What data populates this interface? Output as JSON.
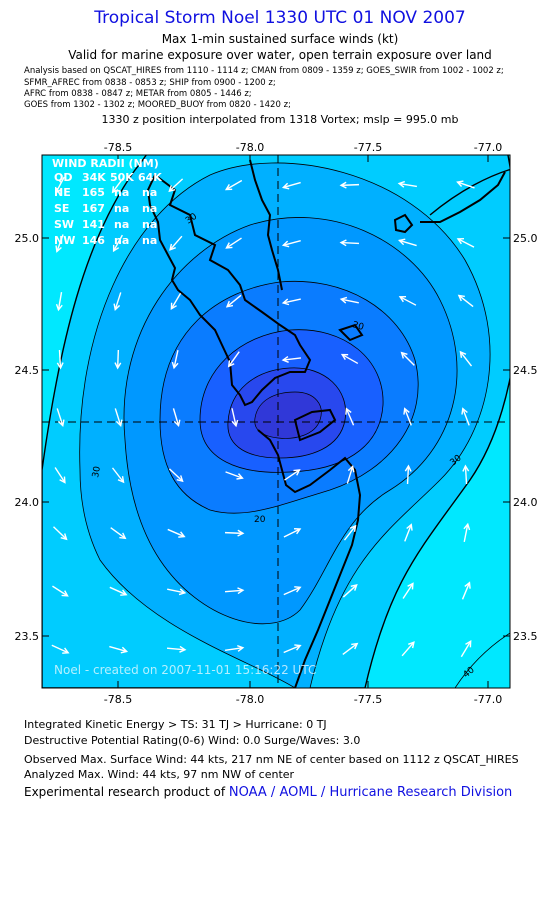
{
  "header": {
    "title": "Tropical Storm Noel 1330 UTC 01 NOV 2007",
    "subtitle1": "Max 1-min sustained surface winds (kt)",
    "subtitle2": "Valid for marine exposure over water, open terrain exposure over land",
    "analysis_lines": [
      "Analysis based on  QSCAT_HIRES from 1110 - 1114 z;  CMAN from 0809 - 1359 z;  GOES_SWIR from 1002 - 1002 z;",
      "SFMR_AFREC from 0838 - 0853 z;  SHIP from 0900 - 1200 z;",
      "AFRC from 0838 - 0847 z;  METAR from 0805 - 1446 z;",
      "GOES from 1302 - 1302 z;  MOORED_BUOY from 0820 - 1420 z;"
    ],
    "position_line": "1330 z position interpolated from 1318 Vortex; mslp = 995.0 mb"
  },
  "map": {
    "x_ticks": [
      "-78.5",
      "-78.0",
      "-77.5",
      "-77.0"
    ],
    "y_ticks": [
      "25.0",
      "24.5",
      "24.0",
      "23.5"
    ],
    "contour_labels": [
      "30",
      "20",
      "30",
      "20",
      "30",
      "40"
    ],
    "credit": "Noel - created on 2007-11-01 15:16:22 UTC",
    "wind_radii": {
      "title": "WIND RADII (NM)",
      "header": [
        "QD",
        "34K",
        "50K",
        "64K"
      ],
      "rows": [
        [
          "NE",
          "165",
          "na",
          "na"
        ],
        [
          "SE",
          "167",
          "na",
          "na"
        ],
        [
          "SW",
          "141",
          "na",
          "na"
        ],
        [
          "NW",
          "146",
          "na",
          "na"
        ]
      ]
    },
    "colors": {
      "band_15": "#00e8ff",
      "band_20": "#00ccff",
      "band_25": "#00b0ff",
      "band_30": "#0098ff",
      "band_35": "#0a7cff",
      "band_40": "#1860ff",
      "band_44": "#2848ee",
      "arrow": "#ffffff",
      "land": "#000000"
    }
  },
  "footer": {
    "ike": "Integrated Kinetic Energy > TS: 31 TJ   > Hurricane: 0 TJ",
    "dpr": "Destructive Potential Rating(0-6)   Wind: 0.0 Surge/Waves: 3.0",
    "obs_max": "Observed Max. Surface Wind: 44 kts, 217 nm NE of center based on 1112 z QSCAT_HIRES",
    "ana_max": "Analyzed Max. Wind: 44 kts, 97 nm NW of center",
    "credit_prefix": "Experimental research product of ",
    "credit_org": "NOAA / AOML / Hurricane Research Division"
  }
}
